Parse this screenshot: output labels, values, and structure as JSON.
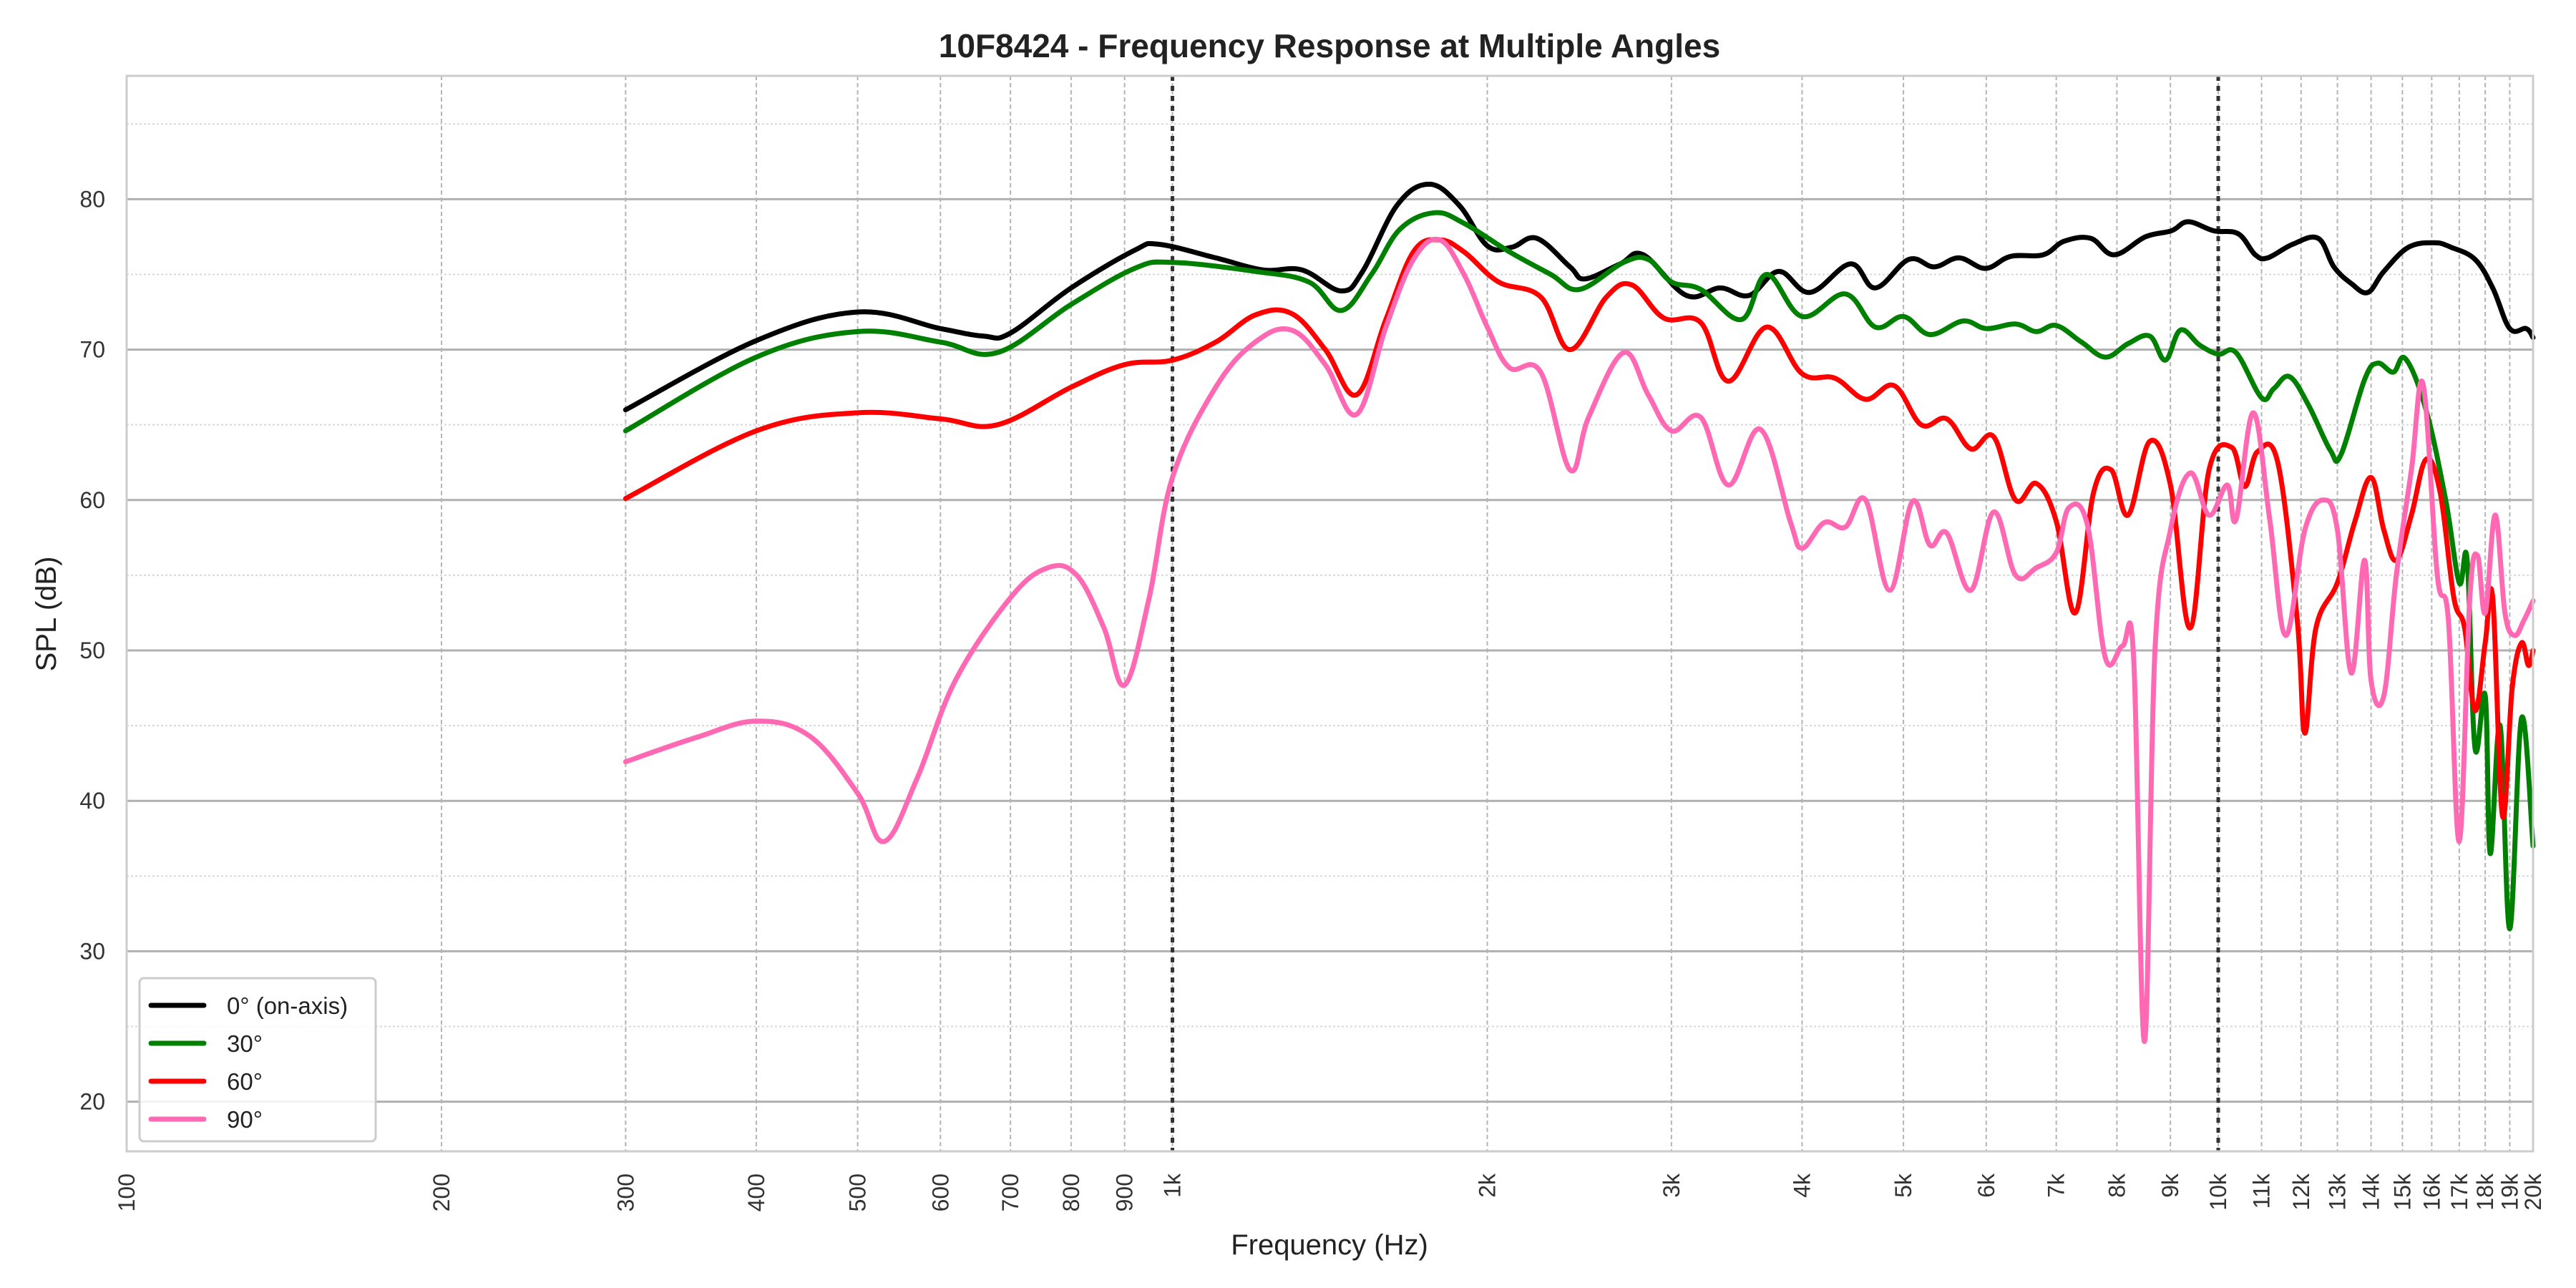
{
  "chart_data": {
    "type": "line",
    "title": "10F8424 - Frequency Response at Multiple Angles",
    "xlabel": "Frequency (Hz)",
    "ylabel": "SPL (dB)",
    "xscale": "log",
    "xlim": [
      100,
      20000
    ],
    "ylim": [
      16.7,
      88.2
    ],
    "grid": true,
    "legend_position": "lower-left",
    "yticks": [
      20,
      30,
      40,
      50,
      60,
      70,
      80
    ],
    "yticks_minor": [
      25,
      35,
      45,
      55,
      65,
      75,
      85
    ],
    "xticks": [
      {
        "value": 100,
        "label": "100"
      },
      {
        "value": 200,
        "label": "200"
      },
      {
        "value": 300,
        "label": "300"
      },
      {
        "value": 400,
        "label": "400"
      },
      {
        "value": 500,
        "label": "500"
      },
      {
        "value": 600,
        "label": "600"
      },
      {
        "value": 700,
        "label": "700"
      },
      {
        "value": 800,
        "label": "800"
      },
      {
        "value": 900,
        "label": "900"
      },
      {
        "value": 1000,
        "label": "1k"
      },
      {
        "value": 2000,
        "label": "2k"
      },
      {
        "value": 3000,
        "label": "3k"
      },
      {
        "value": 4000,
        "label": "4k"
      },
      {
        "value": 5000,
        "label": "5k"
      },
      {
        "value": 6000,
        "label": "6k"
      },
      {
        "value": 7000,
        "label": "7k"
      },
      {
        "value": 8000,
        "label": "8k"
      },
      {
        "value": 9000,
        "label": "9k"
      },
      {
        "value": 10000,
        "label": "10k"
      },
      {
        "value": 11000,
        "label": "11k"
      },
      {
        "value": 12000,
        "label": "12k"
      },
      {
        "value": 13000,
        "label": "13k"
      },
      {
        "value": 14000,
        "label": "14k"
      },
      {
        "value": 15000,
        "label": "15k"
      },
      {
        "value": 16000,
        "label": "16k"
      },
      {
        "value": 17000,
        "label": "17k"
      },
      {
        "value": 18000,
        "label": "18k"
      },
      {
        "value": 19000,
        "label": "19k"
      },
      {
        "value": 20000,
        "label": "20k"
      }
    ],
    "vlines": [
      {
        "x": 1000,
        "style": "dotted"
      },
      {
        "x": 10000,
        "style": "dotted"
      }
    ],
    "series": [
      {
        "name": "0° (on-axis)",
        "color": "#000000",
        "points": [
          [
            300,
            66.0
          ],
          [
            400,
            70.6
          ],
          [
            500,
            72.5
          ],
          [
            600,
            71.4
          ],
          [
            660,
            70.9
          ],
          [
            700,
            71.1
          ],
          [
            800,
            74.1
          ],
          [
            920,
            76.6
          ],
          [
            970,
            77.0
          ],
          [
            1100,
            76.1
          ],
          [
            1220,
            75.3
          ],
          [
            1330,
            75.3
          ],
          [
            1450,
            73.9
          ],
          [
            1520,
            75.2
          ],
          [
            1640,
            79.6
          ],
          [
            1760,
            81.0
          ],
          [
            1880,
            79.6
          ],
          [
            2000,
            76.9
          ],
          [
            2110,
            76.8
          ],
          [
            2230,
            77.4
          ],
          [
            2400,
            75.5
          ],
          [
            2480,
            74.7
          ],
          [
            2680,
            75.7
          ],
          [
            2820,
            76.3
          ],
          [
            3100,
            73.6
          ],
          [
            3340,
            74.1
          ],
          [
            3560,
            73.6
          ],
          [
            3800,
            75.2
          ],
          [
            4070,
            73.8
          ],
          [
            4450,
            75.7
          ],
          [
            4700,
            74.1
          ],
          [
            5060,
            76.0
          ],
          [
            5350,
            75.5
          ],
          [
            5650,
            76.1
          ],
          [
            5990,
            75.4
          ],
          [
            6330,
            76.2
          ],
          [
            6800,
            76.3
          ],
          [
            7120,
            77.2
          ],
          [
            7550,
            77.4
          ],
          [
            7950,
            76.3
          ],
          [
            8520,
            77.5
          ],
          [
            9020,
            77.9
          ],
          [
            9360,
            78.5
          ],
          [
            9900,
            77.9
          ],
          [
            10450,
            77.7
          ],
          [
            10850,
            76.3
          ],
          [
            11150,
            76.1
          ],
          [
            11780,
            77.0
          ],
          [
            12460,
            77.4
          ],
          [
            12900,
            75.5
          ],
          [
            13400,
            74.4
          ],
          [
            13900,
            73.8
          ],
          [
            14400,
            75.2
          ],
          [
            15200,
            76.8
          ],
          [
            16100,
            77.1
          ],
          [
            16700,
            76.8
          ],
          [
            17600,
            76.0
          ],
          [
            18300,
            74.1
          ],
          [
            19000,
            71.4
          ],
          [
            19700,
            71.4
          ],
          [
            20000,
            70.8
          ]
        ]
      },
      {
        "name": "30°",
        "color": "#008000",
        "points": [
          [
            300,
            64.6
          ],
          [
            400,
            69.5
          ],
          [
            500,
            71.2
          ],
          [
            600,
            70.5
          ],
          [
            680,
            69.8
          ],
          [
            800,
            73.0
          ],
          [
            920,
            75.4
          ],
          [
            1000,
            75.8
          ],
          [
            1200,
            75.2
          ],
          [
            1350,
            74.5
          ],
          [
            1450,
            72.6
          ],
          [
            1550,
            75.0
          ],
          [
            1650,
            78.0
          ],
          [
            1780,
            79.1
          ],
          [
            1900,
            78.4
          ],
          [
            2100,
            76.5
          ],
          [
            2300,
            75.0
          ],
          [
            2450,
            74.0
          ],
          [
            2700,
            75.8
          ],
          [
            2850,
            76.0
          ],
          [
            3000,
            74.5
          ],
          [
            3200,
            74.0
          ],
          [
            3500,
            72.0
          ],
          [
            3700,
            75.0
          ],
          [
            4000,
            72.2
          ],
          [
            4400,
            73.7
          ],
          [
            4700,
            71.5
          ],
          [
            5000,
            72.2
          ],
          [
            5300,
            71.0
          ],
          [
            5700,
            71.9
          ],
          [
            6000,
            71.4
          ],
          [
            6400,
            71.7
          ],
          [
            6700,
            71.2
          ],
          [
            7000,
            71.6
          ],
          [
            7400,
            70.5
          ],
          [
            7800,
            69.5
          ],
          [
            8200,
            70.4
          ],
          [
            8600,
            70.9
          ],
          [
            8900,
            69.3
          ],
          [
            9200,
            71.3
          ],
          [
            9600,
            70.3
          ],
          [
            10000,
            69.7
          ],
          [
            10400,
            69.8
          ],
          [
            11000,
            66.8
          ],
          [
            11300,
            67.4
          ],
          [
            11700,
            68.2
          ],
          [
            12200,
            66.3
          ],
          [
            12800,
            63.3
          ],
          [
            13100,
            63.0
          ],
          [
            13800,
            68.0
          ],
          [
            14200,
            69.1
          ],
          [
            14700,
            68.5
          ],
          [
            15100,
            69.4
          ],
          [
            15800,
            66.0
          ],
          [
            16500,
            60.0
          ],
          [
            17000,
            54.5
          ],
          [
            17300,
            56.0
          ],
          [
            17600,
            43.5
          ],
          [
            18000,
            47.0
          ],
          [
            18200,
            36.5
          ],
          [
            18600,
            45.0
          ],
          [
            19000,
            31.5
          ],
          [
            19500,
            45.5
          ],
          [
            20000,
            37.0
          ]
        ]
      },
      {
        "name": "60°",
        "color": "#ff0000",
        "points": [
          [
            300,
            60.1
          ],
          [
            400,
            64.6
          ],
          [
            500,
            65.8
          ],
          [
            600,
            65.4
          ],
          [
            680,
            65.0
          ],
          [
            800,
            67.5
          ],
          [
            900,
            69.0
          ],
          [
            1000,
            69.3
          ],
          [
            1100,
            70.5
          ],
          [
            1200,
            72.3
          ],
          [
            1300,
            72.4
          ],
          [
            1400,
            70.0
          ],
          [
            1500,
            67.0
          ],
          [
            1600,
            72.0
          ],
          [
            1700,
            76.5
          ],
          [
            1800,
            77.3
          ],
          [
            1900,
            76.5
          ],
          [
            2050,
            74.5
          ],
          [
            2250,
            73.5
          ],
          [
            2400,
            70.0
          ],
          [
            2600,
            73.5
          ],
          [
            2750,
            74.3
          ],
          [
            2950,
            72.1
          ],
          [
            3200,
            71.8
          ],
          [
            3400,
            67.9
          ],
          [
            3700,
            71.5
          ],
          [
            4000,
            68.4
          ],
          [
            4300,
            68.1
          ],
          [
            4600,
            66.7
          ],
          [
            4900,
            67.6
          ],
          [
            5200,
            65.0
          ],
          [
            5500,
            65.4
          ],
          [
            5800,
            63.4
          ],
          [
            6100,
            64.2
          ],
          [
            6400,
            60.0
          ],
          [
            6700,
            61.1
          ],
          [
            7000,
            58.6
          ],
          [
            7300,
            52.5
          ],
          [
            7600,
            60.5
          ],
          [
            7900,
            62.0
          ],
          [
            8200,
            59.0
          ],
          [
            8600,
            63.9
          ],
          [
            9000,
            61.0
          ],
          [
            9400,
            51.5
          ],
          [
            9800,
            62.0
          ],
          [
            10300,
            63.5
          ],
          [
            10600,
            60.9
          ],
          [
            10900,
            63.2
          ],
          [
            11400,
            62.5
          ],
          [
            11900,
            52.0
          ],
          [
            12100,
            44.5
          ],
          [
            12400,
            51.5
          ],
          [
            13000,
            54.5
          ],
          [
            13500,
            58.5
          ],
          [
            14000,
            61.5
          ],
          [
            14400,
            58.0
          ],
          [
            14800,
            56.0
          ],
          [
            15300,
            59.0
          ],
          [
            15800,
            62.7
          ],
          [
            16300,
            60.5
          ],
          [
            16800,
            53.5
          ],
          [
            17200,
            51.5
          ],
          [
            17600,
            46.0
          ],
          [
            18000,
            50.5
          ],
          [
            18300,
            53.5
          ],
          [
            18700,
            39.0
          ],
          [
            19100,
            47.5
          ],
          [
            19500,
            50.5
          ],
          [
            19800,
            49.0
          ],
          [
            20000,
            50.0
          ]
        ]
      },
      {
        "name": "90°",
        "color": "#ff69b4",
        "points": [
          [
            300,
            42.6
          ],
          [
            350,
            44.2
          ],
          [
            400,
            45.3
          ],
          [
            450,
            44.3
          ],
          [
            500,
            40.5
          ],
          [
            530,
            37.3
          ],
          [
            570,
            41.5
          ],
          [
            620,
            48.0
          ],
          [
            700,
            53.5
          ],
          [
            760,
            55.5
          ],
          [
            810,
            55.0
          ],
          [
            860,
            51.5
          ],
          [
            900,
            47.7
          ],
          [
            950,
            53.5
          ],
          [
            1000,
            61.5
          ],
          [
            1100,
            67.5
          ],
          [
            1200,
            70.5
          ],
          [
            1300,
            71.3
          ],
          [
            1400,
            69.0
          ],
          [
            1500,
            65.7
          ],
          [
            1600,
            71.5
          ],
          [
            1700,
            76.0
          ],
          [
            1800,
            77.3
          ],
          [
            1900,
            75.0
          ],
          [
            2000,
            71.5
          ],
          [
            2100,
            68.8
          ],
          [
            2250,
            68.5
          ],
          [
            2400,
            62.0
          ],
          [
            2500,
            65.5
          ],
          [
            2700,
            69.8
          ],
          [
            2850,
            67.0
          ],
          [
            3000,
            64.6
          ],
          [
            3200,
            65.5
          ],
          [
            3400,
            61.0
          ],
          [
            3650,
            64.7
          ],
          [
            3900,
            58.5
          ],
          [
            4000,
            56.8
          ],
          [
            4200,
            58.5
          ],
          [
            4400,
            58.2
          ],
          [
            4600,
            60.0
          ],
          [
            4850,
            54.0
          ],
          [
            5100,
            59.9
          ],
          [
            5300,
            57.0
          ],
          [
            5500,
            57.8
          ],
          [
            5800,
            54.0
          ],
          [
            6100,
            59.2
          ],
          [
            6400,
            55.0
          ],
          [
            6700,
            55.5
          ],
          [
            7000,
            56.5
          ],
          [
            7200,
            59.5
          ],
          [
            7500,
            58.3
          ],
          [
            7800,
            49.5
          ],
          [
            8100,
            50.3
          ],
          [
            8300,
            49.5
          ],
          [
            8500,
            24.0
          ],
          [
            8700,
            50.0
          ],
          [
            9000,
            58.0
          ],
          [
            9400,
            61.8
          ],
          [
            9800,
            59.0
          ],
          [
            10200,
            61.0
          ],
          [
            10400,
            58.7
          ],
          [
            10800,
            65.8
          ],
          [
            11200,
            58.7
          ],
          [
            11600,
            51.0
          ],
          [
            12100,
            58.0
          ],
          [
            12600,
            60.0
          ],
          [
            13000,
            58.0
          ],
          [
            13400,
            48.5
          ],
          [
            13800,
            56.0
          ],
          [
            14000,
            48.0
          ],
          [
            14400,
            47.0
          ],
          [
            14800,
            55.0
          ],
          [
            15300,
            62.0
          ],
          [
            15700,
            67.7
          ],
          [
            16200,
            55.0
          ],
          [
            16600,
            52.0
          ],
          [
            17000,
            37.3
          ],
          [
            17400,
            53.5
          ],
          [
            17700,
            56.3
          ],
          [
            18000,
            52.5
          ],
          [
            18400,
            59.0
          ],
          [
            18800,
            52.5
          ],
          [
            19200,
            51.0
          ],
          [
            19600,
            52.0
          ],
          [
            20000,
            53.3
          ]
        ]
      }
    ]
  }
}
